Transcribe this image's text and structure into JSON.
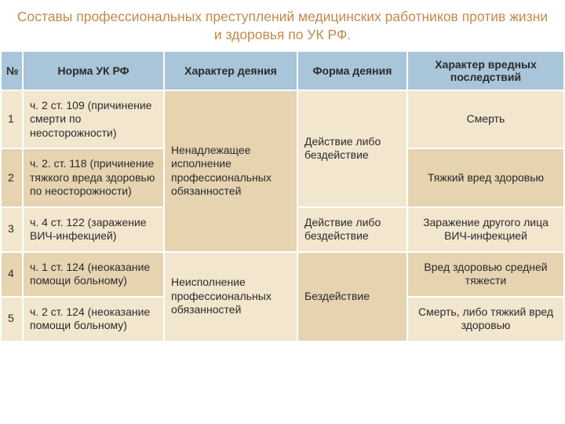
{
  "title": "Составы профессиональных преступлений медицинских работников против жизни и здоровья по УК РФ.",
  "title_color": "#c18a4a",
  "columns": {
    "num": "№",
    "norm": "Норма УК РФ",
    "char": "Характер деяния",
    "form": "Форма деяния",
    "cons": "Характер вредных последствий"
  },
  "header_bg": "#a9c5d9",
  "header_border": "#ffffff",
  "row_colors": {
    "light": "#f3e6cf",
    "dark": "#e6d4b1"
  },
  "cell_border": "#ffffff",
  "text_color": "#2a2a2a",
  "rows": [
    {
      "num": "1",
      "norm": "ч. 2 ст. 109 (причинение смерти по неосторожности)"
    },
    {
      "num": "2",
      "norm": "ч. 2. ст. 118 (причинение тяжкого вреда здоровью по неосторожности)"
    },
    {
      "num": "3",
      "norm": "ч. 4 ст. 122 (заражение ВИЧ-инфекцией)"
    },
    {
      "num": "4",
      "norm": "ч. 1 ст. 124 (неоказание помощи больному)"
    },
    {
      "num": "5",
      "norm": "ч. 2 ст. 124 (неоказание помощи больному)"
    }
  ],
  "char_1_3": "Ненадлежащее исполнение профессиональных обязанностей",
  "char_4_5": "Неисполнение профессиональных обязанностей",
  "form_1_2": "Действие либо бездействие",
  "form_3": "Действие либо бездействие",
  "form_4_5": "Бездействие",
  "cons": {
    "r1": "Смерть",
    "r2": "Тяжкий вред здоровью",
    "r3": "Заражение другого лица ВИЧ-инфекцией",
    "r4": "Вред здоровью средней тяжести",
    "r5": "Смерть, либо тяжкий вред здоровью"
  }
}
